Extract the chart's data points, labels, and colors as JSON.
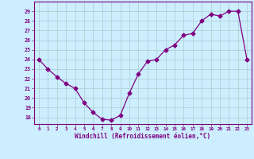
{
  "x": [
    0,
    1,
    2,
    3,
    4,
    5,
    6,
    7,
    8,
    9,
    10,
    11,
    12,
    13,
    14,
    15,
    16,
    17,
    18,
    19,
    20,
    21,
    22,
    23
  ],
  "y": [
    24,
    23,
    22.2,
    21.5,
    21,
    19.5,
    18.5,
    17.8,
    17.7,
    18.2,
    20.5,
    22.5,
    23.8,
    24,
    25,
    25.5,
    26.5,
    26.7,
    28,
    28.7,
    28.5,
    29,
    29,
    24
  ],
  "line_color": "#800080",
  "marker": "D",
  "marker_size": 2.5,
  "background_color": "#cceeff",
  "grid_color": "#aacccc",
  "ylabel_ticks": [
    18,
    19,
    20,
    21,
    22,
    23,
    24,
    25,
    26,
    27,
    28,
    29
  ],
  "ylim": [
    17.3,
    30.0
  ],
  "xlim": [
    -0.5,
    23.5
  ],
  "xlabel": "Windchill (Refroidissement éolien,°C)",
  "xlabel_color": "#800080",
  "tick_color": "#800080",
  "spine_color": "#800080"
}
